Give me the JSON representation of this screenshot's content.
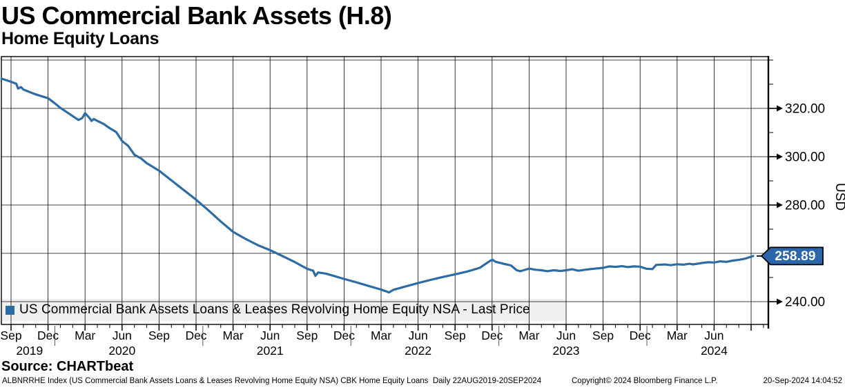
{
  "header": {
    "title": "US Commercial Bank Assets (H.8)",
    "subtitle": "Home Equity Loans"
  },
  "legend": {
    "marker_color": "#2d6ba4",
    "label": "US Commercial Bank Assets Loans & Leases Revolving Home Equity NSA - Last Price"
  },
  "price_tag": {
    "value": "258.89",
    "fill": "#2b67a8",
    "text_color": "#ffffff"
  },
  "y_axis": {
    "title": "USD",
    "tick_labels": [
      "320.00",
      "300.00",
      "280.00",
      "240.00"
    ],
    "tick_values": [
      320,
      300,
      280,
      240
    ],
    "gridline_values": [
      240,
      260,
      280,
      300,
      320,
      340
    ],
    "minor_tick_values": [
      250,
      270,
      290,
      310,
      330,
      340
    ],
    "range": [
      230.6,
      341.4
    ]
  },
  "x_axis": {
    "quarter_labels": [
      "Sep",
      "Dec",
      "Mar",
      "Jun",
      "Sep",
      "Dec",
      "Mar",
      "Jun",
      "Sep",
      "Dec",
      "Mar",
      "Jun",
      "Sep",
      "Dec",
      "Mar",
      "Jun",
      "Sep",
      "Dec",
      "Mar",
      "Jun"
    ],
    "years": [
      {
        "label": "2019",
        "center_m": 1.5
      },
      {
        "label": "2020",
        "center_m": 9
      },
      {
        "label": "2021",
        "center_m": 21
      },
      {
        "label": "2022",
        "center_m": 33
      },
      {
        "label": "2023",
        "center_m": 45
      },
      {
        "label": "2024",
        "center_m": 57
      }
    ]
  },
  "source_line": "Source: CHARTbeat",
  "footer": {
    "left": "ALBNRRHE Index (US Commercial Bank Assets Loans & Leases Revolving Home Equity NSA) CBK Home Equity Loans  Daily 22AUG2019-20SEP2024",
    "center": "Copyright© 2024 Bloomberg Finance L.P.",
    "right": "20-Sep-2024 14:04:52"
  },
  "chart_data": {
    "type": "line",
    "title": "US Commercial Bank Assets (H.8) — Home Equity Loans",
    "series_name": "US Commercial Bank Assets Loans & Leases Revolving Home Equity NSA - Last Price",
    "ylabel": "USD",
    "frequency": "Daily",
    "date_range": [
      "2019-08-22",
      "2024-09-20"
    ],
    "ylim": [
      230.6,
      341.4
    ],
    "grid": true,
    "legend_position": "bottom-left",
    "color": "#2d6ba4",
    "last_price": 258.89,
    "points": [
      [
        "2019-08-22",
        332.3
      ],
      [
        "2019-09-15",
        331.0
      ],
      [
        "2019-09-28",
        330.2
      ],
      [
        "2019-10-02",
        328.2
      ],
      [
        "2019-10-09",
        328.8
      ],
      [
        "2019-10-15",
        327.8
      ],
      [
        "2019-11-15",
        325.8
      ],
      [
        "2019-12-15",
        324.2
      ],
      [
        "2019-12-31",
        322.2
      ],
      [
        "2020-01-15",
        320.2
      ],
      [
        "2020-02-15",
        316.8
      ],
      [
        "2020-02-29",
        315.2
      ],
      [
        "2020-03-08",
        316.0
      ],
      [
        "2020-03-15",
        318.0
      ],
      [
        "2020-03-25",
        316.2
      ],
      [
        "2020-03-31",
        314.8
      ],
      [
        "2020-04-06",
        315.6
      ],
      [
        "2020-04-15",
        314.8
      ],
      [
        "2020-04-30",
        313.6
      ],
      [
        "2020-05-15",
        311.8
      ],
      [
        "2020-05-31",
        310.2
      ],
      [
        "2020-06-15",
        306.5
      ],
      [
        "2020-06-30",
        304.5
      ],
      [
        "2020-07-15",
        300.8
      ],
      [
        "2020-07-31",
        299.3
      ],
      [
        "2020-08-15",
        297.3
      ],
      [
        "2020-09-15",
        294.2
      ],
      [
        "2020-10-15",
        290.2
      ],
      [
        "2020-11-15",
        286.2
      ],
      [
        "2020-12-15",
        282.2
      ],
      [
        "2021-01-15",
        277.8
      ],
      [
        "2021-02-15",
        273.2
      ],
      [
        "2021-03-15",
        268.9
      ],
      [
        "2021-04-15",
        266.0
      ],
      [
        "2021-05-15",
        263.4
      ],
      [
        "2021-06-15",
        261.3
      ],
      [
        "2021-07-15",
        258.9
      ],
      [
        "2021-08-15",
        256.4
      ],
      [
        "2021-09-15",
        253.6
      ],
      [
        "2021-09-30",
        252.8
      ],
      [
        "2021-10-05",
        250.7
      ],
      [
        "2021-10-12",
        252.1
      ],
      [
        "2021-10-31",
        251.6
      ],
      [
        "2021-11-15",
        250.9
      ],
      [
        "2021-12-15",
        249.4
      ],
      [
        "2022-01-15",
        248.0
      ],
      [
        "2022-02-15",
        246.5
      ],
      [
        "2022-03-15",
        245.0
      ],
      [
        "2022-03-29",
        244.2
      ],
      [
        "2022-04-04",
        243.8
      ],
      [
        "2022-04-15",
        244.9
      ],
      [
        "2022-04-30",
        245.6
      ],
      [
        "2022-05-15",
        246.3
      ],
      [
        "2022-06-15",
        247.7
      ],
      [
        "2022-07-15",
        249.0
      ],
      [
        "2022-08-15",
        250.2
      ],
      [
        "2022-09-15",
        251.3
      ],
      [
        "2022-10-15",
        252.5
      ],
      [
        "2022-11-15",
        254.0
      ],
      [
        "2022-12-10",
        256.9
      ],
      [
        "2022-12-16",
        257.3
      ],
      [
        "2022-12-24",
        256.5
      ],
      [
        "2023-01-15",
        255.6
      ],
      [
        "2023-01-31",
        255.0
      ],
      [
        "2023-02-15",
        253.0
      ],
      [
        "2023-02-24",
        252.6
      ],
      [
        "2023-03-15",
        253.7
      ],
      [
        "2023-03-31",
        253.2
      ],
      [
        "2023-04-15",
        253.0
      ],
      [
        "2023-04-30",
        252.6
      ],
      [
        "2023-05-15",
        253.0
      ],
      [
        "2023-05-31",
        252.7
      ],
      [
        "2023-06-15",
        253.0
      ],
      [
        "2023-06-30",
        253.4
      ],
      [
        "2023-07-15",
        252.8
      ],
      [
        "2023-07-31",
        253.2
      ],
      [
        "2023-08-15",
        253.5
      ],
      [
        "2023-09-15",
        254.0
      ],
      [
        "2023-09-30",
        254.6
      ],
      [
        "2023-10-15",
        254.4
      ],
      [
        "2023-10-31",
        254.7
      ],
      [
        "2023-11-15",
        254.3
      ],
      [
        "2023-11-30",
        254.6
      ],
      [
        "2023-12-15",
        254.5
      ],
      [
        "2023-12-31",
        253.6
      ],
      [
        "2024-01-15",
        253.5
      ],
      [
        "2024-01-24",
        255.2
      ],
      [
        "2024-02-15",
        255.4
      ],
      [
        "2024-02-29",
        255.1
      ],
      [
        "2024-03-15",
        255.5
      ],
      [
        "2024-03-31",
        255.3
      ],
      [
        "2024-04-15",
        255.7
      ],
      [
        "2024-04-24",
        255.4
      ],
      [
        "2024-05-15",
        256.0
      ],
      [
        "2024-05-31",
        256.3
      ],
      [
        "2024-06-15",
        256.2
      ],
      [
        "2024-06-30",
        256.7
      ],
      [
        "2024-07-15",
        256.5
      ],
      [
        "2024-07-31",
        257.0
      ],
      [
        "2024-08-15",
        257.3
      ],
      [
        "2024-08-31",
        257.8
      ],
      [
        "2024-09-20",
        258.89
      ]
    ]
  }
}
